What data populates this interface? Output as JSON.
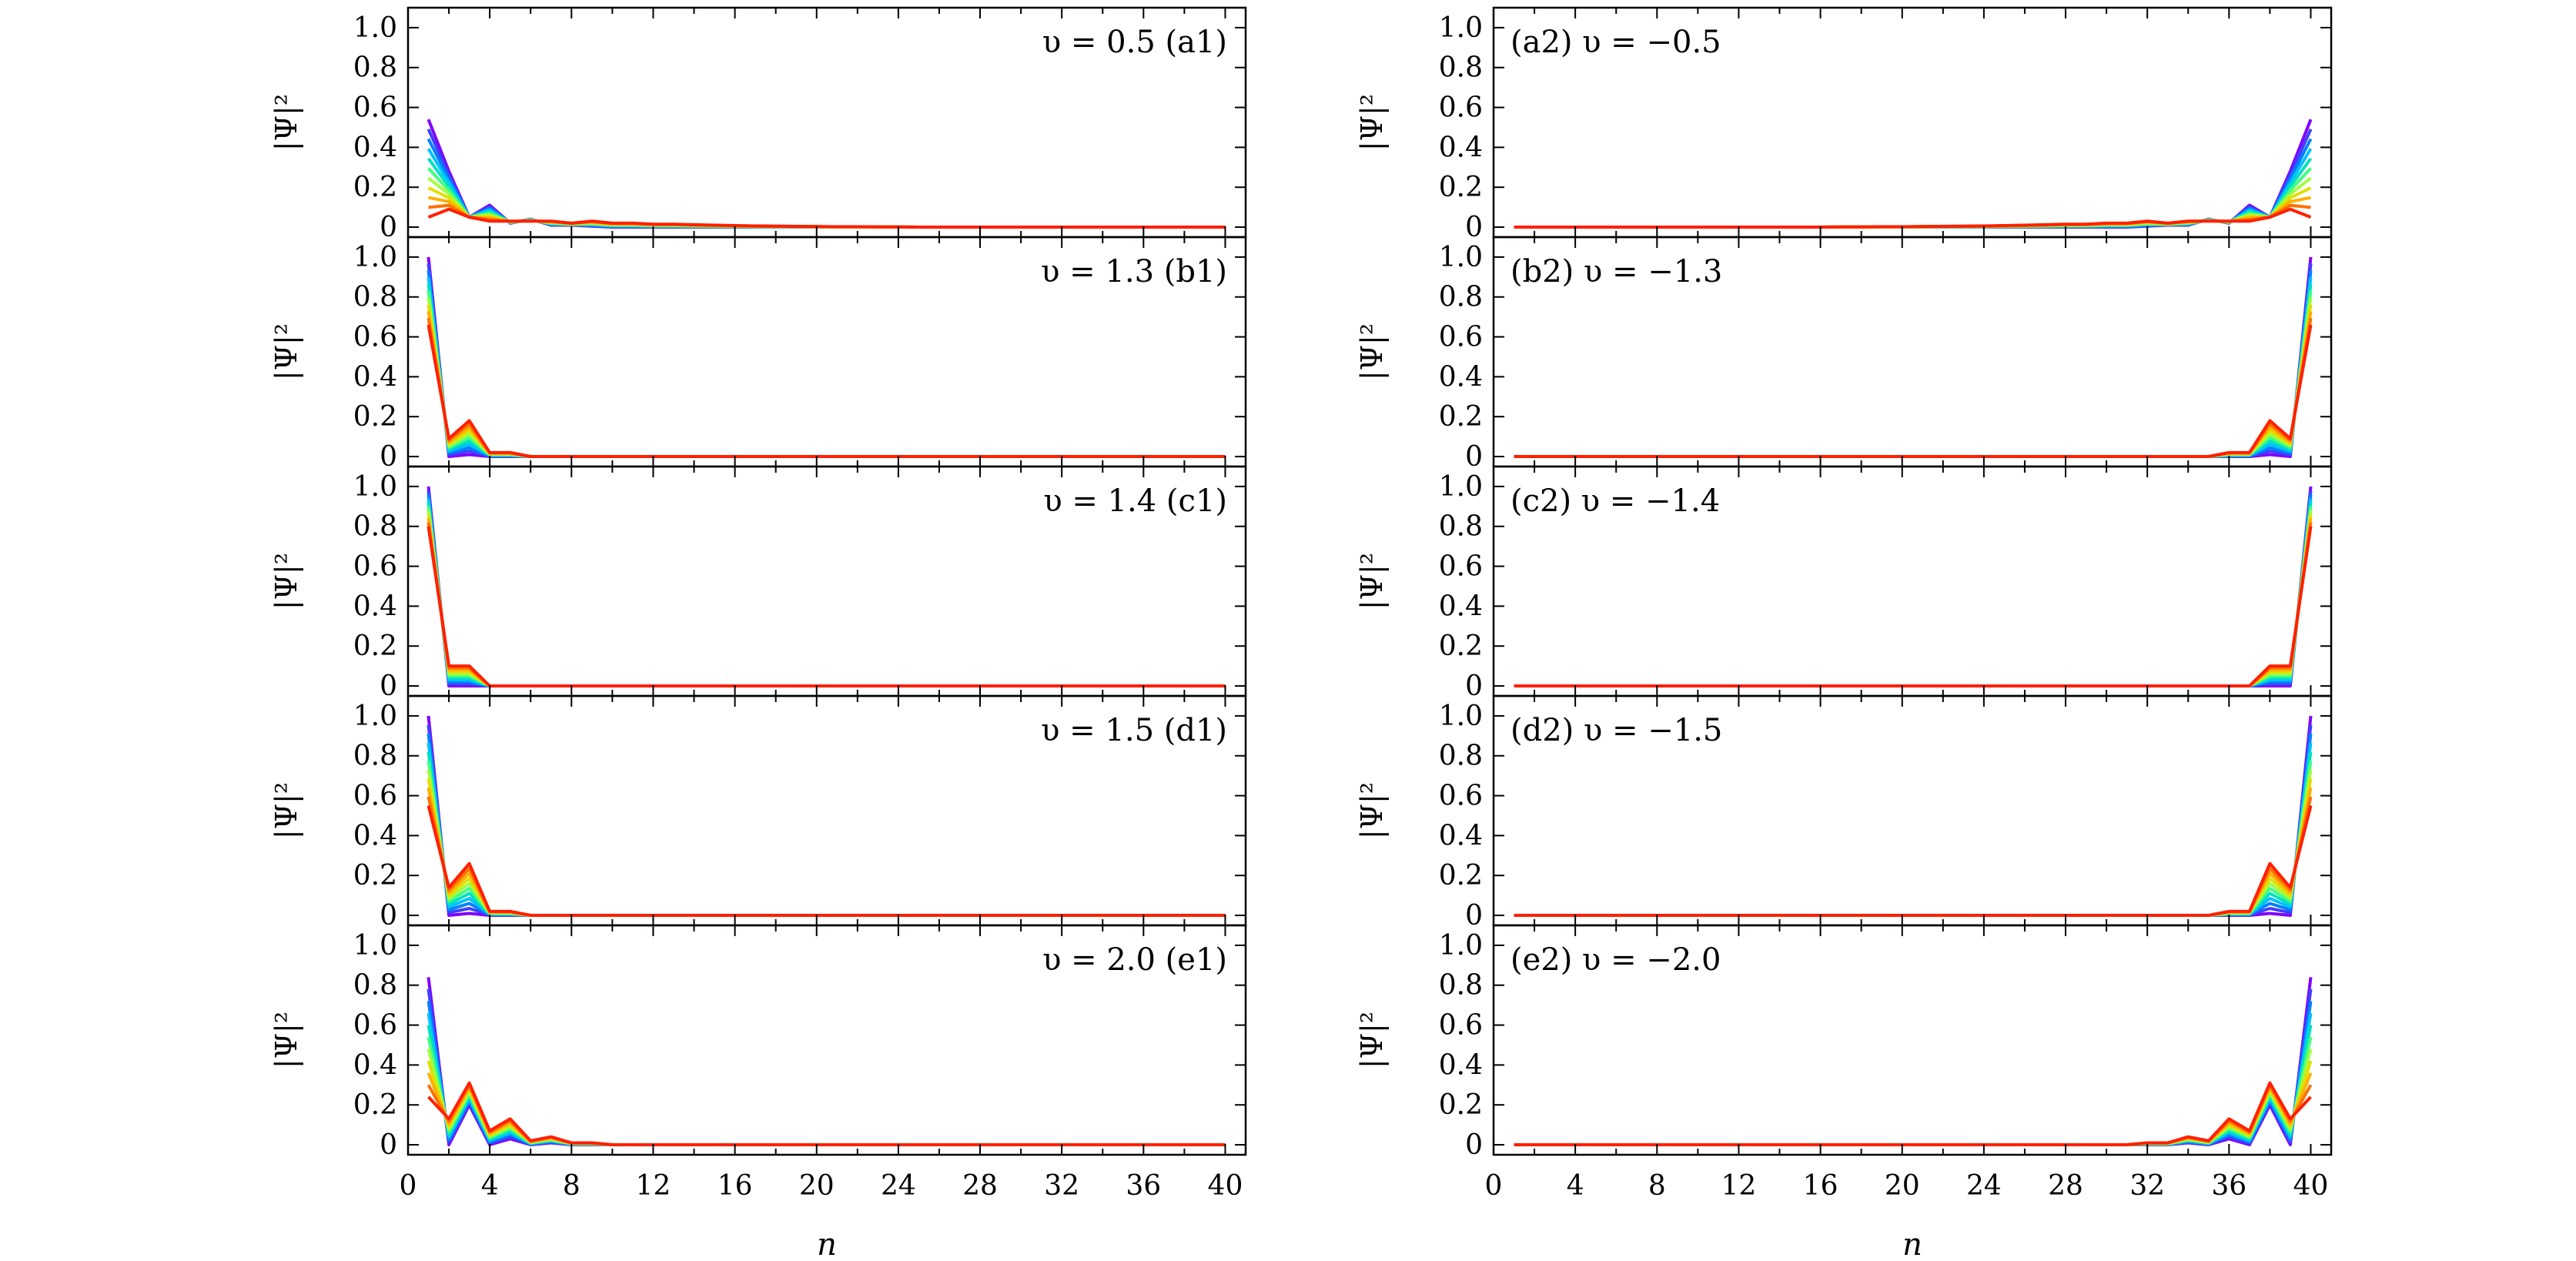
{
  "figure": {
    "y_ticks": [
      "0",
      "0.2",
      "0.4",
      "0.6",
      "0.8",
      "1.0"
    ],
    "x_ticks": [
      "0",
      "4",
      "8",
      "12",
      "16",
      "20",
      "24",
      "28",
      "32",
      "36",
      "40"
    ],
    "ylabel": "|Ψ|²",
    "xlabel": "n",
    "colors": [
      "#8000ff",
      "#4040ff",
      "#0080ff",
      "#00c0ff",
      "#00e0c0",
      "#40ff80",
      "#a0ff40",
      "#e0e000",
      "#ffb000",
      "#ff7000",
      "#ff2000"
    ]
  },
  "chart_data": [
    {
      "id": "a1",
      "type": "line",
      "side": "left",
      "label": "υ = 0.5  (a1)",
      "xlim": [
        0,
        41
      ],
      "ylim": [
        -0.05,
        1.1
      ],
      "x": "1..40",
      "profiles": [
        [
          0.54,
          0.28,
          0.05,
          0.11,
          0.02,
          0.04,
          0.01,
          0.01,
          0.005,
          0,
          0,
          0,
          0,
          0,
          0,
          0,
          0,
          0,
          0,
          0,
          0,
          0,
          0,
          0,
          0,
          0,
          0,
          0,
          0,
          0,
          0,
          0,
          0,
          0,
          0,
          0,
          0,
          0,
          0,
          0
        ],
        [
          0.05,
          0.09,
          0.05,
          0.03,
          0.03,
          0.03,
          0.03,
          0.02,
          0.03,
          0.02,
          0.02,
          0.015,
          0.015,
          0.012,
          0.01,
          0.008,
          0.006,
          0.005,
          0.004,
          0.003,
          0.002,
          0.002,
          0.001,
          0.001,
          0,
          0,
          0,
          0,
          0,
          0,
          0,
          0,
          0,
          0,
          0,
          0,
          0,
          0,
          0,
          0
        ]
      ]
    },
    {
      "id": "b1",
      "type": "line",
      "side": "left",
      "label": "υ = 1.3  (b1)",
      "xlim": [
        0,
        41
      ],
      "ylim": [
        -0.05,
        1.1
      ],
      "x": "1..40",
      "profiles": [
        [
          1.0,
          0.0,
          0.01,
          0.0,
          0,
          0,
          0,
          0,
          0,
          0,
          0,
          0,
          0,
          0,
          0,
          0,
          0,
          0,
          0,
          0,
          0,
          0,
          0,
          0,
          0,
          0,
          0,
          0,
          0,
          0,
          0,
          0,
          0,
          0,
          0,
          0,
          0,
          0,
          0,
          0
        ],
        [
          0.66,
          0.09,
          0.18,
          0.02,
          0.02,
          0,
          0,
          0,
          0,
          0,
          0,
          0,
          0,
          0,
          0,
          0,
          0,
          0,
          0,
          0,
          0,
          0,
          0,
          0,
          0,
          0,
          0,
          0,
          0,
          0,
          0,
          0,
          0,
          0,
          0,
          0,
          0,
          0,
          0,
          0
        ]
      ]
    },
    {
      "id": "c1",
      "type": "line",
      "side": "left",
      "label": "υ = 1.4  (c1)",
      "xlim": [
        0,
        41
      ],
      "ylim": [
        -0.05,
        1.1
      ],
      "x": "1..40",
      "profiles": [
        [
          1.0,
          0.0,
          0.0,
          0.0,
          0,
          0,
          0,
          0,
          0,
          0,
          0,
          0,
          0,
          0,
          0,
          0,
          0,
          0,
          0,
          0,
          0,
          0,
          0,
          0,
          0,
          0,
          0,
          0,
          0,
          0,
          0,
          0,
          0,
          0,
          0,
          0,
          0,
          0,
          0,
          0
        ],
        [
          0.8,
          0.1,
          0.1,
          0.0,
          0,
          0,
          0,
          0,
          0,
          0,
          0,
          0,
          0,
          0,
          0,
          0,
          0,
          0,
          0,
          0,
          0,
          0,
          0,
          0,
          0,
          0,
          0,
          0,
          0,
          0,
          0,
          0,
          0,
          0,
          0,
          0,
          0,
          0,
          0,
          0
        ]
      ]
    },
    {
      "id": "d1",
      "type": "line",
      "side": "left",
      "label": "υ = 1.5  (d1)",
      "xlim": [
        0,
        41
      ],
      "ylim": [
        -0.05,
        1.1
      ],
      "x": "1..40",
      "profiles": [
        [
          1.0,
          0.0,
          0.01,
          0.0,
          0,
          0,
          0,
          0,
          0,
          0,
          0,
          0,
          0,
          0,
          0,
          0,
          0,
          0,
          0,
          0,
          0,
          0,
          0,
          0,
          0,
          0,
          0,
          0,
          0,
          0,
          0,
          0,
          0,
          0,
          0,
          0,
          0,
          0,
          0,
          0
        ],
        [
          0.55,
          0.14,
          0.26,
          0.02,
          0.02,
          0,
          0,
          0,
          0,
          0,
          0,
          0,
          0,
          0,
          0,
          0,
          0,
          0,
          0,
          0,
          0,
          0,
          0,
          0,
          0,
          0,
          0,
          0,
          0,
          0,
          0,
          0,
          0,
          0,
          0,
          0,
          0,
          0,
          0,
          0
        ]
      ]
    },
    {
      "id": "e1",
      "type": "line",
      "side": "left",
      "label": "υ = 2.0  (e1)",
      "xlim": [
        0,
        41
      ],
      "ylim": [
        -0.05,
        1.1
      ],
      "x": "1..40",
      "profiles": [
        [
          0.84,
          0.0,
          0.2,
          0.0,
          0.03,
          0.0,
          0.01,
          0,
          0,
          0,
          0,
          0,
          0,
          0,
          0,
          0,
          0,
          0,
          0,
          0,
          0,
          0,
          0,
          0,
          0,
          0,
          0,
          0,
          0,
          0,
          0,
          0,
          0,
          0,
          0,
          0,
          0,
          0,
          0,
          0
        ],
        [
          0.24,
          0.13,
          0.31,
          0.07,
          0.13,
          0.02,
          0.04,
          0.01,
          0.01,
          0,
          0,
          0,
          0,
          0,
          0,
          0,
          0,
          0,
          0,
          0,
          0,
          0,
          0,
          0,
          0,
          0,
          0,
          0,
          0,
          0,
          0,
          0,
          0,
          0,
          0,
          0,
          0,
          0,
          0,
          0
        ]
      ]
    },
    {
      "id": "a2",
      "type": "line",
      "side": "right",
      "label": "(a2)  υ = −0.5",
      "mirror_of": "a1",
      "xlim": [
        0,
        41
      ],
      "ylim": [
        -0.05,
        1.1
      ]
    },
    {
      "id": "b2",
      "type": "line",
      "side": "right",
      "label": "(b2)  υ = −1.3",
      "mirror_of": "b1",
      "xlim": [
        0,
        41
      ],
      "ylim": [
        -0.05,
        1.1
      ]
    },
    {
      "id": "c2",
      "type": "line",
      "side": "right",
      "label": "(c2)  υ = −1.4",
      "mirror_of": "c1",
      "xlim": [
        0,
        41
      ],
      "ylim": [
        -0.05,
        1.1
      ]
    },
    {
      "id": "d2",
      "type": "line",
      "side": "right",
      "label": "(d2)  υ = −1.5",
      "mirror_of": "d1",
      "xlim": [
        0,
        41
      ],
      "ylim": [
        -0.05,
        1.1
      ]
    },
    {
      "id": "e2",
      "type": "line",
      "side": "right",
      "label": "(e2)  υ = −2.0",
      "mirror_of": "e1",
      "xlim": [
        0,
        41
      ],
      "ylim": [
        -0.05,
        1.1
      ]
    }
  ]
}
